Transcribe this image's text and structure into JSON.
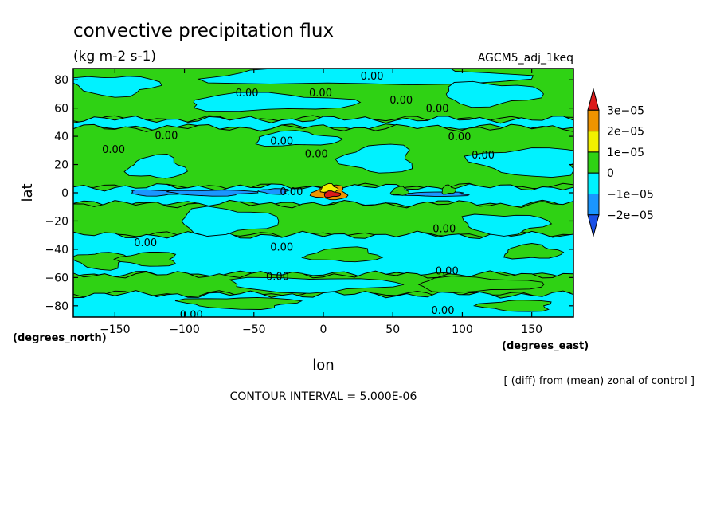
{
  "chart_data": {
    "type": "contour",
    "title": "convective precipitation flux",
    "units": "(kg m-2 s-1)",
    "dataset": "AGCM5_adj_1keq",
    "xlabel": "lon",
    "ylabel": "lat",
    "xunits": "(degrees_east)",
    "yunits": "(degrees_north)",
    "xlim": [
      -180,
      180
    ],
    "ylim": [
      -88,
      88
    ],
    "xticks": [
      -150,
      -100,
      -50,
      0,
      50,
      100,
      150
    ],
    "xtick_labels": [
      "−150",
      "−100",
      "−50",
      "0",
      "50",
      "100",
      "150"
    ],
    "yticks": [
      80,
      60,
      40,
      20,
      0,
      -20,
      -40,
      -60,
      -80
    ],
    "ytick_labels": [
      "80",
      "60",
      "40",
      "20",
      "0",
      "−20",
      "−40",
      "−60",
      "−80"
    ],
    "operation": "[ (diff) from (mean) zonal of control ]",
    "contour_interval": "CONTOUR INTERVAL = 5.000E-06",
    "contour_label_text": "0.00",
    "contour_labels": [
      {
        "lon": 35,
        "lat": 83
      },
      {
        "lon": -55,
        "lat": 71
      },
      {
        "lon": -2,
        "lat": 71
      },
      {
        "lon": 56,
        "lat": 66
      },
      {
        "lon": 82,
        "lat": 60
      },
      {
        "lon": -113,
        "lat": 41
      },
      {
        "lon": -30,
        "lat": 37
      },
      {
        "lon": 98,
        "lat": 40
      },
      {
        "lon": -151,
        "lat": 31
      },
      {
        "lon": 115,
        "lat": 27
      },
      {
        "lon": -5,
        "lat": 28
      },
      {
        "lon": -23,
        "lat": 1
      },
      {
        "lon": 87,
        "lat": -25
      },
      {
        "lon": -128,
        "lat": -35
      },
      {
        "lon": -30,
        "lat": -38
      },
      {
        "lon": -33,
        "lat": -59
      },
      {
        "lon": 89,
        "lat": -55
      },
      {
        "lon": 86,
        "lat": -83
      },
      {
        "lon": -95,
        "lat": -86
      }
    ],
    "legend": {
      "boundaries": [
        "3e−05",
        "2e−05",
        "1e−05",
        "0",
        "−1e−05",
        "−2e−05"
      ],
      "colors": [
        "#dc1a1a",
        "#ee9400",
        "#f2f000",
        "#2fd214",
        "#00f2ff",
        "#1a96ff",
        "#1a50e6"
      ]
    },
    "bands": [
      {
        "level": "0_to_1e-05",
        "color": "#2fd214",
        "lat_from": 88,
        "lat_to": 52,
        "edge": "#000"
      },
      {
        "level": "-1e-05_to_0",
        "color": "#00f2ff",
        "lat_from": 52,
        "lat_to": 46,
        "edge": "#000"
      },
      {
        "level": "0_to_1e-05",
        "color": "#2fd214",
        "lat_from": 46,
        "lat_to": 4,
        "edge": "#000"
      },
      {
        "level": "-1e-05_to_0",
        "color": "#00f2ff",
        "lat_from": 4,
        "lat_to": -8,
        "edge": "#000"
      },
      {
        "level": "0_to_1e-05",
        "color": "#2fd214",
        "lat_from": -8,
        "lat_to": -30,
        "edge": "#000"
      },
      {
        "level": "-1e-05_to_0",
        "color": "#00f2ff",
        "lat_from": -30,
        "lat_to": -58,
        "edge": "#000"
      },
      {
        "level": "0_to_1e-05",
        "color": "#2fd214",
        "lat_from": -58,
        "lat_to": -72,
        "edge": "#000"
      },
      {
        "level": "-1e-05_to_0",
        "color": "#00f2ff",
        "lat_from": -72,
        "lat_to": -88,
        "edge": "#000"
      }
    ],
    "blobs": [
      {
        "color": "#00f2ff",
        "lon": 30,
        "lat": 83,
        "rx": 110,
        "ry": 7
      },
      {
        "color": "#00f2ff",
        "lon": -40,
        "lat": 64,
        "rx": 60,
        "ry": 6
      },
      {
        "color": "#00f2ff",
        "lon": 120,
        "lat": 70,
        "rx": 35,
        "ry": 8
      },
      {
        "color": "#00f2ff",
        "lon": -150,
        "lat": 76,
        "rx": 30,
        "ry": 7
      },
      {
        "color": "#00f2ff",
        "lon": 150,
        "lat": 22,
        "rx": 40,
        "ry": 10
      },
      {
        "color": "#00f2ff",
        "lon": 40,
        "lat": 24,
        "rx": 25,
        "ry": 10
      },
      {
        "color": "#00f2ff",
        "lon": -120,
        "lat": 18,
        "rx": 20,
        "ry": 8
      },
      {
        "color": "#00f2ff",
        "lon": -20,
        "lat": 38,
        "rx": 30,
        "ry": 5
      },
      {
        "color": "#00f2ff",
        "lon": -70,
        "lat": -20,
        "rx": 35,
        "ry": 9
      },
      {
        "color": "#00f2ff",
        "lon": 130,
        "lat": -22,
        "rx": 30,
        "ry": 7
      },
      {
        "color": "#2fd214",
        "lon": -160,
        "lat": -48,
        "rx": 18,
        "ry": 6
      },
      {
        "color": "#2fd214",
        "lon": -125,
        "lat": -47,
        "rx": 20,
        "ry": 5
      },
      {
        "color": "#2fd214",
        "lon": 15,
        "lat": -44,
        "rx": 25,
        "ry": 5
      },
      {
        "color": "#2fd214",
        "lon": 150,
        "lat": -42,
        "rx": 20,
        "ry": 5
      },
      {
        "color": "#2fd214",
        "lon": 110,
        "lat": -65,
        "rx": 45,
        "ry": 5
      },
      {
        "color": "#00f2ff",
        "lon": -10,
        "lat": -65,
        "rx": 60,
        "ry": 5
      },
      {
        "color": "#2fd214",
        "lon": -60,
        "lat": -78,
        "rx": 40,
        "ry": 4
      },
      {
        "color": "#2fd214",
        "lon": 140,
        "lat": -80,
        "rx": 25,
        "ry": 4
      },
      {
        "color": "#ee9400",
        "lon": 5,
        "lat": 0,
        "rx": 12,
        "ry": 5
      },
      {
        "color": "#f2f000",
        "lon": 4,
        "lat": 3,
        "rx": 6,
        "ry": 3
      },
      {
        "color": "#dc1a1a",
        "lon": 6,
        "lat": -1,
        "rx": 6,
        "ry": 2
      },
      {
        "color": "#1a96ff",
        "lon": -120,
        "lat": 0,
        "rx": 20,
        "ry": 2
      },
      {
        "color": "#1a96ff",
        "lon": -80,
        "lat": 0,
        "rx": 30,
        "ry": 2
      },
      {
        "color": "#1a96ff",
        "lon": -35,
        "lat": 1,
        "rx": 10,
        "ry": 2
      },
      {
        "color": "#1a96ff",
        "lon": 80,
        "lat": -1,
        "rx": 25,
        "ry": 1.5
      },
      {
        "color": "#2fd214",
        "lon": 55,
        "lat": 1,
        "rx": 6,
        "ry": 3
      },
      {
        "color": "#2fd214",
        "lon": 90,
        "lat": 2,
        "rx": 5,
        "ry": 3
      }
    ]
  }
}
